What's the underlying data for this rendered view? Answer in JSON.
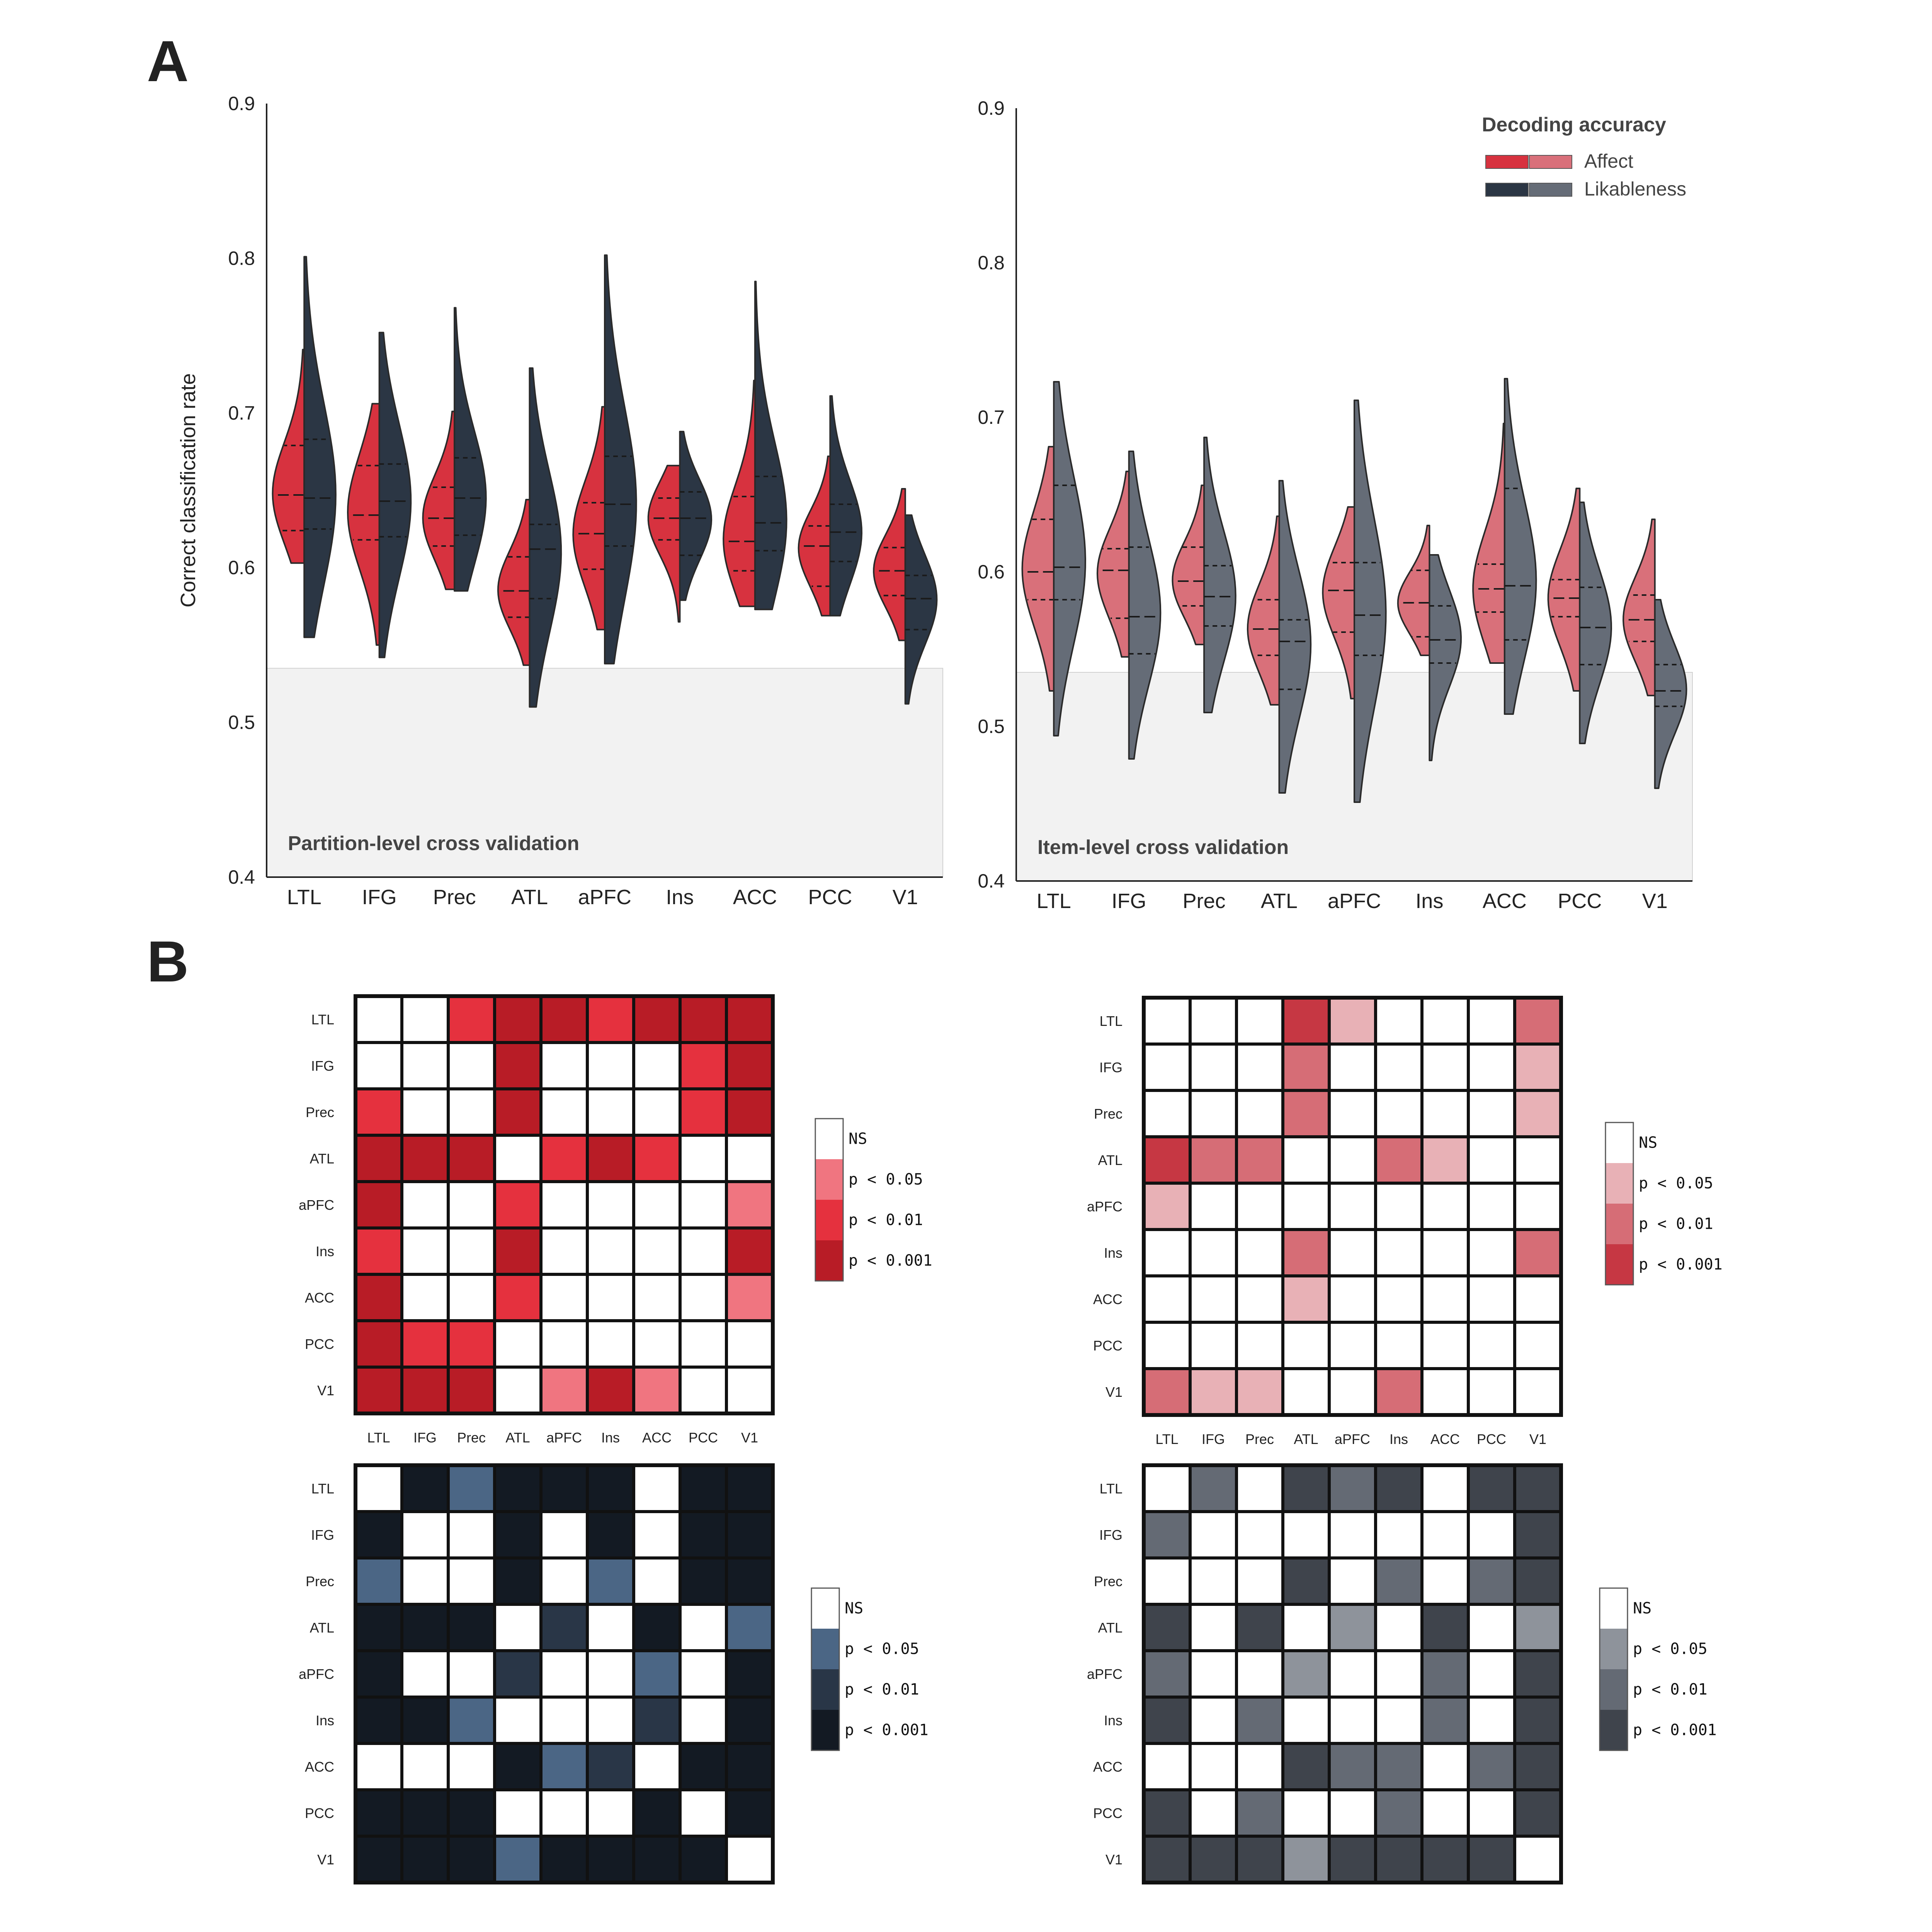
{
  "panels": {
    "a": "A",
    "b": "B"
  },
  "regions": [
    "LTL",
    "IFG",
    "Prec",
    "ATL",
    "aPFC",
    "Ins",
    "ACC",
    "PCC",
    "V1"
  ],
  "colors": {
    "affect_dark": "#d7323f",
    "affect_light": "#d9707a",
    "like_dark": "#2b3644",
    "like_light": "#656c77",
    "chance_band": "#f2f2f2"
  },
  "legend": {
    "title": "Decoding accuracy",
    "entries": [
      "Affect",
      "Likableness"
    ]
  },
  "chart_data": [
    {
      "type": "violin",
      "note": "Partition-level cross validation",
      "ylabel": "Correct classification rate",
      "ylim": [
        0.4,
        0.9
      ],
      "yticks": [
        0.4,
        0.5,
        0.6,
        0.7,
        0.8,
        0.9
      ],
      "chance_upper": 0.535,
      "categories": [
        "LTL",
        "IFG",
        "Prec",
        "ATL",
        "aPFC",
        "Ins",
        "ACC",
        "PCC",
        "V1"
      ],
      "series": [
        {
          "name": "Affect",
          "color": "#d7323f",
          "ranges": [
            [
              0.603,
              0.741
            ],
            [
              0.55,
              0.706
            ],
            [
              0.586,
              0.701
            ],
            [
              0.537,
              0.644
            ],
            [
              0.56,
              0.704
            ],
            [
              0.565,
              0.666
            ],
            [
              0.575,
              0.721
            ],
            [
              0.569,
              0.672
            ],
            [
              0.553,
              0.651
            ]
          ],
          "quartiles": [
            [
              0.624,
              0.647,
              0.679
            ],
            [
              0.618,
              0.634,
              0.666
            ],
            [
              0.614,
              0.632,
              0.652
            ],
            [
              0.568,
              0.585,
              0.607
            ],
            [
              0.599,
              0.622,
              0.642
            ],
            [
              0.618,
              0.632,
              0.645
            ],
            [
              0.598,
              0.617,
              0.646
            ],
            [
              0.588,
              0.614,
              0.627
            ],
            [
              0.582,
              0.598,
              0.613
            ]
          ]
        },
        {
          "name": "Likableness",
          "color": "#2b3644",
          "ranges": [
            [
              0.555,
              0.801
            ],
            [
              0.542,
              0.752
            ],
            [
              0.585,
              0.768
            ],
            [
              0.51,
              0.729
            ],
            [
              0.538,
              0.802
            ],
            [
              0.579,
              0.688
            ],
            [
              0.573,
              0.785
            ],
            [
              0.569,
              0.711
            ],
            [
              0.512,
              0.634
            ]
          ],
          "quartiles": [
            [
              0.625,
              0.645,
              0.683
            ],
            [
              0.62,
              0.643,
              0.667
            ],
            [
              0.621,
              0.645,
              0.671
            ],
            [
              0.58,
              0.612,
              0.628
            ],
            [
              0.614,
              0.641,
              0.672
            ],
            [
              0.608,
              0.632,
              0.649
            ],
            [
              0.611,
              0.629,
              0.659
            ],
            [
              0.604,
              0.623,
              0.641
            ],
            [
              0.56,
              0.58,
              0.595
            ]
          ]
        }
      ]
    },
    {
      "type": "violin",
      "note": "Item-level cross validation",
      "ylim": [
        0.4,
        0.9
      ],
      "yticks": [
        0.4,
        0.5,
        0.6,
        0.7,
        0.8,
        0.9
      ],
      "chance_upper": 0.535,
      "categories": [
        "LTL",
        "IFG",
        "Prec",
        "ATL",
        "aPFC",
        "Ins",
        "ACC",
        "PCC",
        "V1"
      ],
      "series": [
        {
          "name": "Affect",
          "color": "#d9707a",
          "ranges": [
            [
              0.523,
              0.681
            ],
            [
              0.545,
              0.665
            ],
            [
              0.553,
              0.656
            ],
            [
              0.514,
              0.636
            ],
            [
              0.518,
              0.642
            ],
            [
              0.546,
              0.63
            ],
            [
              0.541,
              0.696
            ],
            [
              0.523,
              0.654
            ],
            [
              0.52,
              0.634
            ]
          ],
          "quartiles": [
            [
              0.582,
              0.6,
              0.634
            ],
            [
              0.57,
              0.601,
              0.615
            ],
            [
              0.578,
              0.594,
              0.616
            ],
            [
              0.546,
              0.563,
              0.582
            ],
            [
              0.561,
              0.588,
              0.606
            ],
            [
              0.558,
              0.58,
              0.601
            ],
            [
              0.574,
              0.589,
              0.605
            ],
            [
              0.571,
              0.583,
              0.595
            ],
            [
              0.555,
              0.569,
              0.585
            ]
          ]
        },
        {
          "name": "Likableness",
          "color": "#656c77",
          "ranges": [
            [
              0.494,
              0.723
            ],
            [
              0.479,
              0.678
            ],
            [
              0.509,
              0.687
            ],
            [
              0.457,
              0.659
            ],
            [
              0.451,
              0.711
            ],
            [
              0.478,
              0.611
            ],
            [
              0.508,
              0.725
            ],
            [
              0.489,
              0.645
            ],
            [
              0.46,
              0.582
            ]
          ],
          "quartiles": [
            [
              0.582,
              0.603,
              0.656
            ],
            [
              0.547,
              0.571,
              0.616
            ],
            [
              0.565,
              0.584,
              0.604
            ],
            [
              0.524,
              0.555,
              0.569
            ],
            [
              0.546,
              0.572,
              0.606
            ],
            [
              0.541,
              0.556,
              0.578
            ],
            [
              0.556,
              0.591,
              0.654
            ],
            [
              0.54,
              0.564,
              0.59
            ],
            [
              0.513,
              0.523,
              0.54
            ]
          ]
        }
      ]
    },
    {
      "type": "heatmap",
      "labels": [
        "LTL",
        "IFG",
        "Prec",
        "ATL",
        "aPFC",
        "Ins",
        "ACC",
        "PCC",
        "V1"
      ],
      "show_xlabels": true,
      "levels": [
        "NS",
        "p < 0.05",
        "p < 0.01",
        "p < 0.001"
      ],
      "palette": [
        "#ffffff",
        "#f07580",
        "#e5313e",
        "#b81c26"
      ],
      "matrix": [
        [
          0,
          0,
          2,
          3,
          3,
          2,
          3,
          3,
          3
        ],
        [
          0,
          0,
          0,
          3,
          0,
          0,
          0,
          2,
          3
        ],
        [
          2,
          0,
          0,
          3,
          0,
          0,
          0,
          2,
          3
        ],
        [
          3,
          3,
          3,
          0,
          2,
          3,
          2,
          0,
          0
        ],
        [
          3,
          0,
          0,
          2,
          0,
          0,
          0,
          0,
          1
        ],
        [
          2,
          0,
          0,
          3,
          0,
          0,
          0,
          0,
          3
        ],
        [
          3,
          0,
          0,
          2,
          0,
          0,
          0,
          0,
          1
        ],
        [
          3,
          2,
          2,
          0,
          0,
          0,
          0,
          0,
          0
        ],
        [
          3,
          3,
          3,
          0,
          1,
          3,
          1,
          0,
          0
        ]
      ]
    },
    {
      "type": "heatmap",
      "labels": [
        "LTL",
        "IFG",
        "Prec",
        "ATL",
        "aPFC",
        "Ins",
        "ACC",
        "PCC",
        "V1"
      ],
      "show_xlabels": true,
      "levels": [
        "NS",
        "p < 0.05",
        "p < 0.01",
        "p < 0.001"
      ],
      "palette": [
        "#ffffff",
        "#e8b1b6",
        "#d66d76",
        "#c63743"
      ],
      "matrix": [
        [
          0,
          0,
          0,
          3,
          1,
          0,
          0,
          0,
          2
        ],
        [
          0,
          0,
          0,
          2,
          0,
          0,
          0,
          0,
          1
        ],
        [
          0,
          0,
          0,
          2,
          0,
          0,
          0,
          0,
          1
        ],
        [
          3,
          2,
          2,
          0,
          0,
          2,
          1,
          0,
          0
        ],
        [
          1,
          0,
          0,
          0,
          0,
          0,
          0,
          0,
          0
        ],
        [
          0,
          0,
          0,
          2,
          0,
          0,
          0,
          0,
          2
        ],
        [
          0,
          0,
          0,
          1,
          0,
          0,
          0,
          0,
          0
        ],
        [
          0,
          0,
          0,
          0,
          0,
          0,
          0,
          0,
          0
        ],
        [
          2,
          1,
          1,
          0,
          0,
          2,
          0,
          0,
          0
        ]
      ]
    },
    {
      "type": "heatmap",
      "labels": [
        "LTL",
        "IFG",
        "Prec",
        "ATL",
        "aPFC",
        "Ins",
        "ACC",
        "PCC",
        "V1"
      ],
      "show_xlabels": false,
      "levels": [
        "NS",
        "p < 0.05",
        "p < 0.01",
        "p < 0.001"
      ],
      "palette": [
        "#ffffff",
        "#4b6685",
        "#293647",
        "#131a23"
      ],
      "matrix": [
        [
          0,
          3,
          1,
          3,
          3,
          3,
          0,
          3,
          3
        ],
        [
          3,
          0,
          0,
          3,
          0,
          3,
          0,
          3,
          3
        ],
        [
          1,
          0,
          0,
          3,
          0,
          1,
          0,
          3,
          3
        ],
        [
          3,
          3,
          3,
          0,
          2,
          0,
          3,
          0,
          1
        ],
        [
          3,
          0,
          0,
          2,
          0,
          0,
          1,
          0,
          3
        ],
        [
          3,
          3,
          1,
          0,
          0,
          0,
          2,
          0,
          3
        ],
        [
          0,
          0,
          0,
          3,
          1,
          2,
          0,
          3,
          3
        ],
        [
          3,
          3,
          3,
          0,
          0,
          0,
          3,
          0,
          3
        ],
        [
          3,
          3,
          3,
          1,
          3,
          3,
          3,
          3,
          0
        ]
      ]
    },
    {
      "type": "heatmap",
      "labels": [
        "LTL",
        "IFG",
        "Prec",
        "ATL",
        "aPFC",
        "Ins",
        "ACC",
        "PCC",
        "V1"
      ],
      "show_xlabels": false,
      "levels": [
        "NS",
        "p < 0.05",
        "p < 0.01",
        "p < 0.001"
      ],
      "palette": [
        "#ffffff",
        "#8e939b",
        "#646a74",
        "#3f444c"
      ],
      "matrix": [
        [
          0,
          2,
          0,
          3,
          2,
          3,
          0,
          3,
          3
        ],
        [
          2,
          0,
          0,
          0,
          0,
          0,
          0,
          0,
          3
        ],
        [
          0,
          0,
          0,
          3,
          0,
          2,
          0,
          2,
          3
        ],
        [
          3,
          0,
          3,
          0,
          1,
          0,
          3,
          0,
          1
        ],
        [
          2,
          0,
          0,
          1,
          0,
          0,
          2,
          0,
          3
        ],
        [
          3,
          0,
          2,
          0,
          0,
          0,
          2,
          0,
          3
        ],
        [
          0,
          0,
          0,
          3,
          2,
          2,
          0,
          2,
          3
        ],
        [
          3,
          0,
          2,
          0,
          0,
          2,
          0,
          0,
          3
        ],
        [
          3,
          3,
          3,
          1,
          3,
          3,
          3,
          3,
          0
        ]
      ]
    }
  ]
}
